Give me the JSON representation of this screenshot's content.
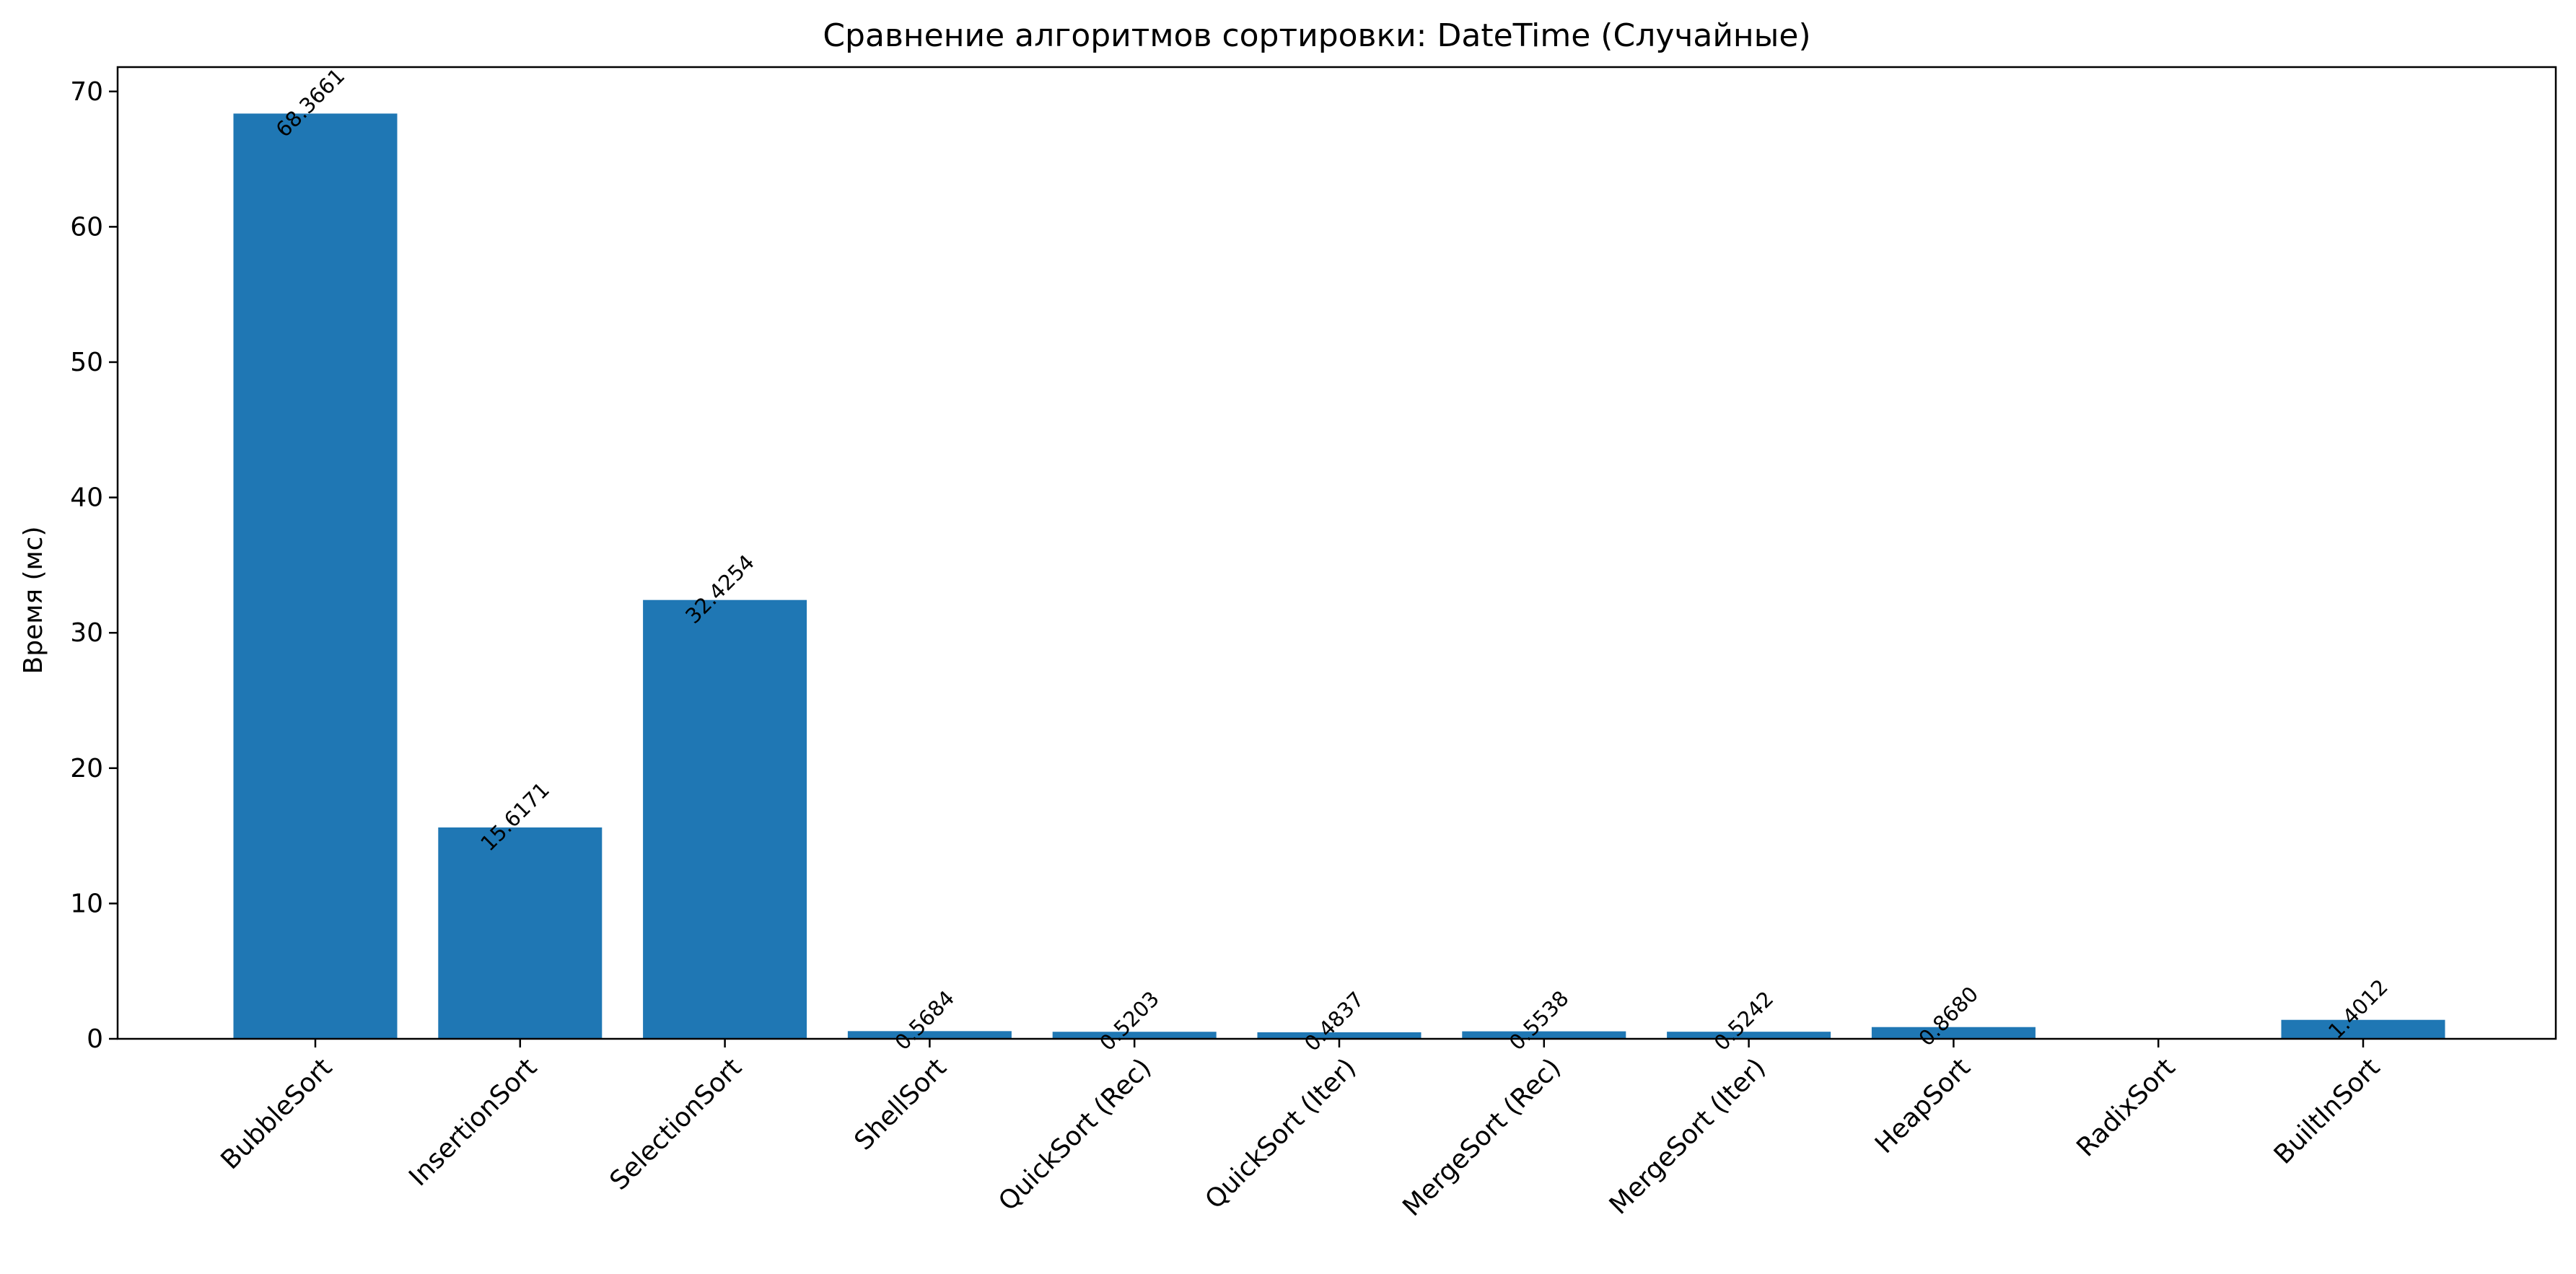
{
  "chart_data": {
    "type": "bar",
    "title": "Сравнение алгоритмов сортировки: DateTime (Случайные)",
    "xlabel": "",
    "ylabel": "Время (мс)",
    "ylim": [
      0,
      71.8
    ],
    "yticks": [
      0,
      10,
      20,
      30,
      40,
      50,
      60,
      70
    ],
    "grid": false,
    "color": "#1f77b4",
    "categories": [
      "BubbleSort",
      "InsertionSort",
      "SelectionSort",
      "ShellSort",
      "QuickSort (Rec)",
      "QuickSort (Iter)",
      "MergeSort (Rec)",
      "MergeSort (Iter)",
      "HeapSort",
      "RadixSort",
      "BuiltInSort"
    ],
    "values": [
      68.3661,
      15.6171,
      32.4254,
      0.5684,
      0.5203,
      0.4837,
      0.5538,
      0.5242,
      0.868,
      null,
      1.4012
    ],
    "data_labels": [
      "68.3661",
      "15.6171",
      "32.4254",
      "0.5684",
      "0.5203",
      "0.4837",
      "0.5538",
      "0.5242",
      "0.8680",
      "",
      "1.4012"
    ]
  }
}
